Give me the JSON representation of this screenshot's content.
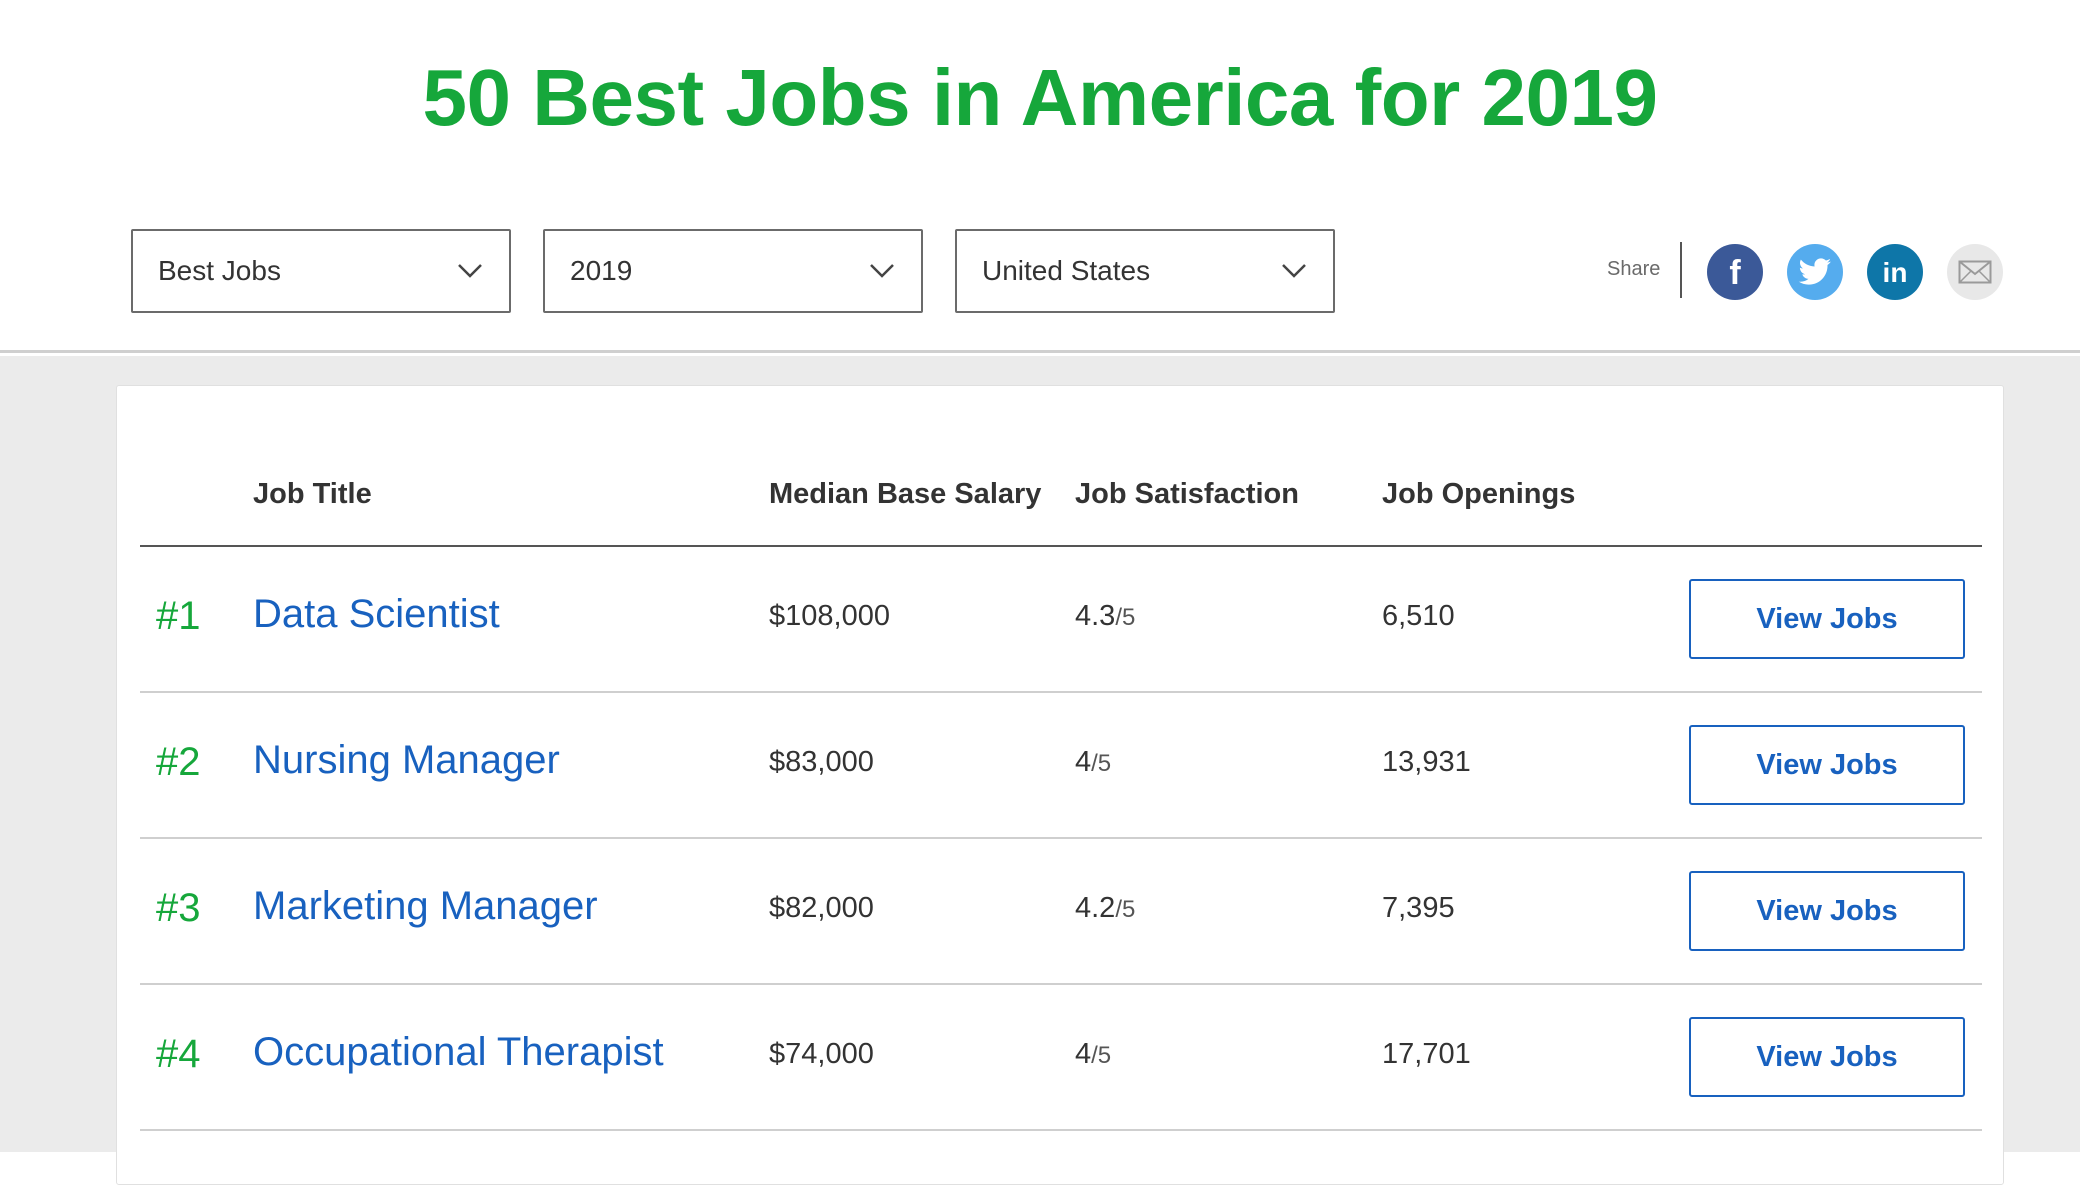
{
  "page_title": "50 Best Jobs in America for 2019",
  "filters": [
    {
      "value": "Best Jobs"
    },
    {
      "value": "2019"
    },
    {
      "value": "United States"
    }
  ],
  "share": {
    "label": "Share",
    "icons": [
      "facebook-icon",
      "twitter-icon",
      "linkedin-icon",
      "email-icon"
    ],
    "colors": {
      "facebook": "#3b5998",
      "twitter": "#55acee",
      "linkedin": "#0e76a8",
      "email": "#e8e8e8"
    }
  },
  "table": {
    "headers": {
      "title": "Job Title",
      "salary": "Median Base Salary",
      "satisfaction": "Job Satisfaction",
      "openings": "Job Openings"
    },
    "rows": [
      {
        "rank": "#1",
        "title": "Data Scientist",
        "salary": "$108,000",
        "satisfaction": "4.3",
        "satisfaction_denom": "/5",
        "openings": "6,510",
        "button": "View Jobs"
      },
      {
        "rank": "#2",
        "title": "Nursing Manager",
        "salary": "$83,000",
        "satisfaction": "4",
        "satisfaction_denom": "/5",
        "openings": "13,931",
        "button": "View Jobs"
      },
      {
        "rank": "#3",
        "title": "Marketing Manager",
        "salary": "$82,000",
        "satisfaction": "4.2",
        "satisfaction_denom": "/5",
        "openings": "7,395",
        "button": "View Jobs"
      },
      {
        "rank": "#4",
        "title": "Occupational Therapist",
        "salary": "$74,000",
        "satisfaction": "4",
        "satisfaction_denom": "/5",
        "openings": "17,701",
        "button": "View Jobs"
      }
    ]
  },
  "colors": {
    "accent_green": "#16a73b",
    "link_blue": "#1861bf"
  }
}
